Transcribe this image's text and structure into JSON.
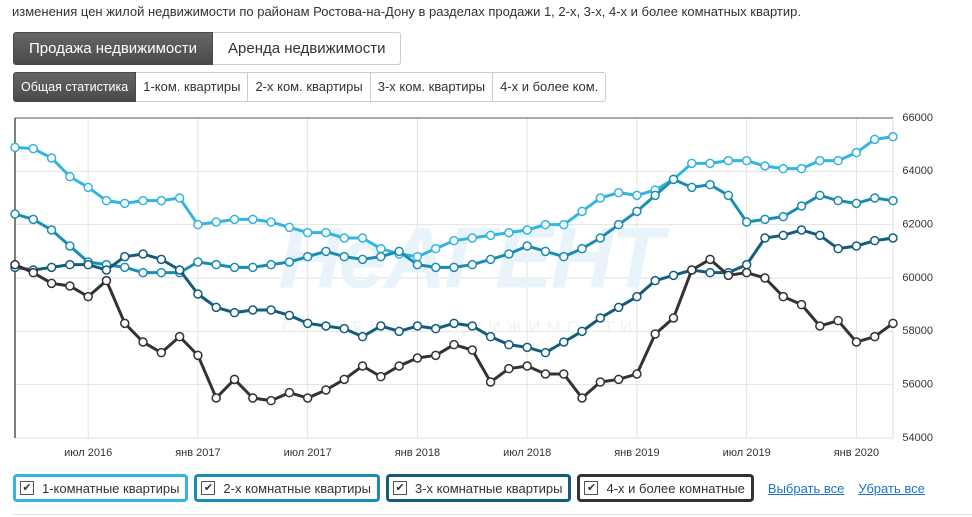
{
  "intro": "изменения цен жилой недвижимости по районам Ростова-на-Дону в разделах продажи 1, 2-х, 3-х, 4-х и более комнатных квартир.",
  "tabs": [
    "Продажа недвижимости",
    "Аренда недвижимости"
  ],
  "subtabs": [
    "Общая статистика",
    "1-ком. квартиры",
    "2-х ком. квартиры",
    "3-х ком. квартиры",
    "4-х и более ком."
  ],
  "chart_data": {
    "type": "line",
    "watermark": "НеАГЕНТ",
    "watermark_subtitle": "СИСТЕМА НЕДВИЖИМОСТИ",
    "categories": [
      null,
      null,
      null,
      null,
      "июл 2016",
      null,
      null,
      null,
      null,
      null,
      "янв 2017",
      null,
      null,
      null,
      null,
      null,
      "июл 2017",
      null,
      null,
      null,
      null,
      null,
      "янв 2018",
      null,
      null,
      null,
      null,
      null,
      "июл 2018",
      null,
      null,
      null,
      null,
      null,
      "янв 2019",
      null,
      null,
      null,
      null,
      null,
      "июл 2019",
      null,
      null,
      null,
      null,
      null,
      "янв 2020",
      null,
      null
    ],
    "ylim": [
      54000,
      66000
    ],
    "yticks": [
      54000,
      56000,
      58000,
      60000,
      62000,
      64000,
      66000
    ],
    "grid": true,
    "series": [
      {
        "name": "1-комнатные квартиры",
        "color": "#33b5e0",
        "values": [
          64900,
          64850,
          64500,
          63800,
          63400,
          62900,
          62800,
          62900,
          62900,
          63000,
          62000,
          62100,
          62200,
          62200,
          62100,
          61900,
          61700,
          61700,
          61500,
          61500,
          61100,
          60900,
          60800,
          61100,
          61400,
          61500,
          61600,
          61700,
          61800,
          62000,
          62000,
          62500,
          63000,
          63200,
          63100,
          63300,
          63700,
          64300,
          64300,
          64400,
          64400,
          64200,
          64100,
          64100,
          64400,
          64400,
          64700,
          65200,
          65300
        ]
      },
      {
        "name": "2-х комнатные квартиры",
        "color": "#1b8db3",
        "values": [
          62400,
          62200,
          61800,
          61200,
          60600,
          60500,
          60400,
          60200,
          60200,
          60200,
          60600,
          60500,
          60400,
          60400,
          60500,
          60600,
          60800,
          61000,
          60800,
          60700,
          60800,
          61000,
          60500,
          60400,
          60400,
          60500,
          60700,
          60900,
          61200,
          61000,
          60800,
          61100,
          61500,
          62000,
          62500,
          63100,
          63700,
          63400,
          63500,
          63100,
          62100,
          62200,
          62300,
          62700,
          63100,
          62900,
          62800,
          63000,
          62900
        ]
      },
      {
        "name": "3-х комнатные квартиры",
        "color": "#135d7b",
        "values": [
          60400,
          60300,
          60400,
          60500,
          60500,
          60300,
          60800,
          60900,
          60700,
          60300,
          59400,
          58900,
          58700,
          58800,
          58800,
          58600,
          58300,
          58200,
          58100,
          57800,
          58200,
          58000,
          58200,
          58100,
          58300,
          58200,
          57800,
          57500,
          57400,
          57200,
          57600,
          58000,
          58500,
          58900,
          59300,
          59900,
          60100,
          60300,
          60200,
          60200,
          60500,
          61500,
          61600,
          61800,
          61600,
          61100,
          61200,
          61400,
          61500
        ]
      },
      {
        "name": "4-х и более комнатные",
        "color": "#333333",
        "values": [
          60500,
          60200,
          59800,
          59700,
          59300,
          59900,
          58300,
          57600,
          57200,
          57800,
          57100,
          55500,
          56200,
          55500,
          55400,
          55700,
          55500,
          55800,
          56200,
          56700,
          56300,
          56700,
          57000,
          57100,
          57500,
          57300,
          56100,
          56600,
          56700,
          56400,
          56400,
          55500,
          56100,
          56200,
          56400,
          57900,
          58500,
          60300,
          60700,
          60100,
          60200,
          60000,
          59300,
          59000,
          58200,
          58400,
          57600,
          57800,
          58300
        ]
      }
    ]
  },
  "legend_actions": [
    "Выбрать все",
    "Убрать все"
  ]
}
